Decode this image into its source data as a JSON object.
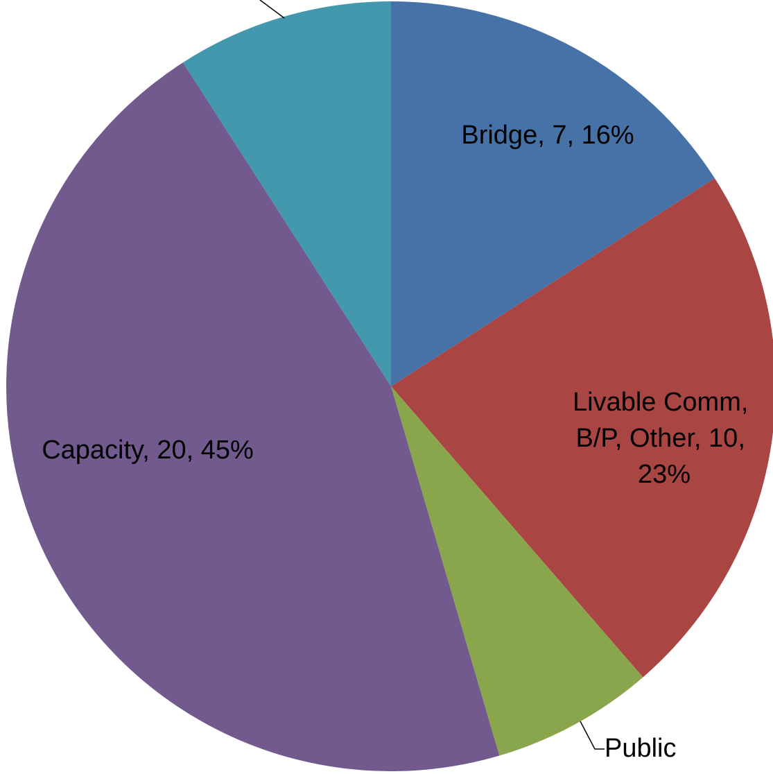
{
  "chart_data": {
    "type": "pie",
    "title": "",
    "slices": [
      {
        "name": "Bridge",
        "value": 7,
        "percent": "16%",
        "color": "#4672A8",
        "label_lines": [
          "Bridge, 7, 16%"
        ]
      },
      {
        "name": "Livable Comm, B/P, Other",
        "value": 10,
        "percent": "23%",
        "color": "#A94644",
        "label_lines": [
          "Livable Comm,",
          "B/P, Other, 10,",
          "23%"
        ]
      },
      {
        "name": "Public",
        "value": 3,
        "percent": "",
        "color": "#8AA64D",
        "label_lines": [
          "Public"
        ]
      },
      {
        "name": "Capacity",
        "value": 20,
        "percent": "45%",
        "color": "#725A8E",
        "label_lines": [
          "Capacity, 20, 45%"
        ]
      },
      {
        "name": "",
        "value": 4,
        "percent": "",
        "color": "#4398AE",
        "label_lines": []
      }
    ],
    "start_angle": "12 o'clock",
    "direction": "clockwise",
    "legend": "none"
  }
}
